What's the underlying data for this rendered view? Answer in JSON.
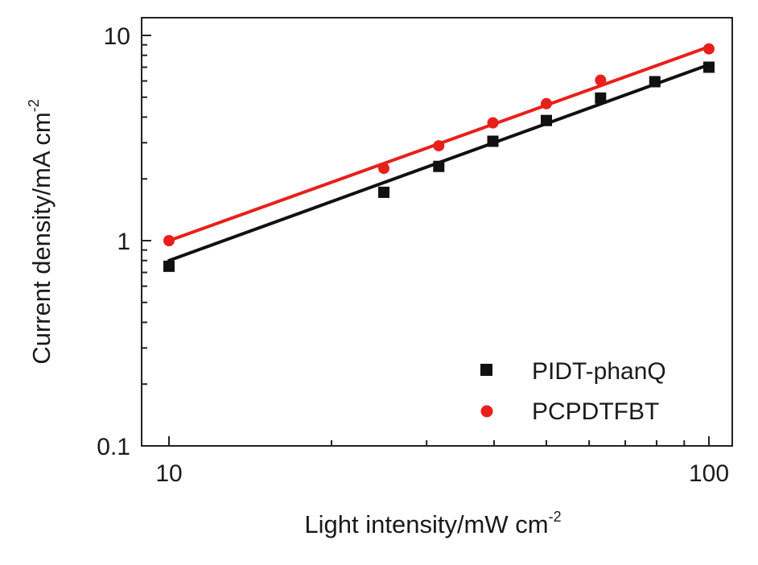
{
  "chart_data": {
    "type": "scatter",
    "title": "",
    "xlabel": {
      "text": "Light intensity/mW cm",
      "sup": "-2"
    },
    "ylabel": {
      "text": "Current density/mA cm",
      "sup": "-2"
    },
    "xscale": "log",
    "yscale": "log",
    "xlim": [
      10,
      100
    ],
    "ylim": [
      0.1,
      10
    ],
    "x_ticks": [
      {
        "value": 10,
        "label": "10"
      },
      {
        "value": 100,
        "label": "100"
      }
    ],
    "y_ticks": [
      {
        "value": 0.1,
        "label": "0.1"
      },
      {
        "value": 1,
        "label": "1"
      },
      {
        "value": 10,
        "label": "10"
      }
    ],
    "legend_position": "bottom-right",
    "series": [
      {
        "name": "PIDT-phanQ",
        "marker": "square",
        "color": "#111111",
        "points": [
          [
            10,
            0.75
          ],
          [
            25,
            1.72
          ],
          [
            31.6,
            2.3
          ],
          [
            39.8,
            3.05
          ],
          [
            50,
            3.85
          ],
          [
            63,
            4.95
          ],
          [
            79.4,
            5.95
          ],
          [
            100,
            7.0
          ]
        ],
        "fit": {
          "x": [
            10,
            100
          ],
          "y": [
            0.8,
            7.2
          ]
        }
      },
      {
        "name": "PCPDTFBT",
        "marker": "circle",
        "color": "#e8201c",
        "points": [
          [
            10,
            1.0
          ],
          [
            25,
            2.25
          ],
          [
            31.6,
            2.9
          ],
          [
            39.8,
            3.75
          ],
          [
            50,
            4.65
          ],
          [
            63,
            6.05
          ],
          [
            100,
            8.6
          ]
        ],
        "fit": {
          "x": [
            10,
            100
          ],
          "y": [
            1.0,
            8.8
          ]
        }
      }
    ]
  }
}
